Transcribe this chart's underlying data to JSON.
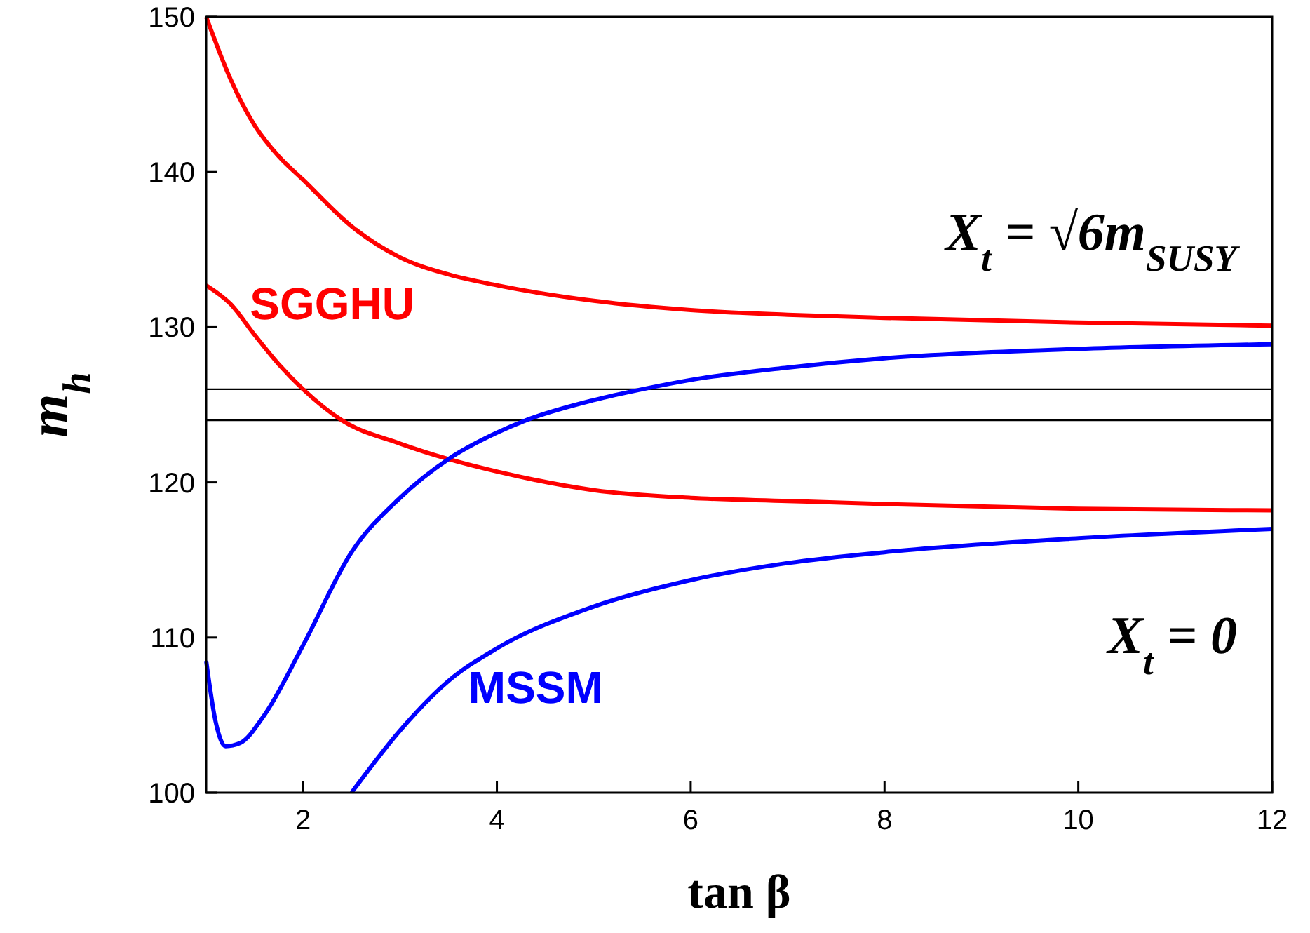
{
  "chart_data": {
    "type": "line",
    "xlabel": "tan β",
    "ylabel": "m$_{h}$",
    "xlim": [
      1,
      12
    ],
    "ylim": [
      100,
      150
    ],
    "xticks": [
      2,
      4,
      6,
      8,
      10,
      12
    ],
    "yticks": [
      100,
      110,
      120,
      130,
      140,
      150
    ],
    "grid": false,
    "marker": "none",
    "line_style": "solid",
    "series": [
      {
        "color": "#ff0000",
        "x": [
          1,
          1.25,
          1.5,
          1.75,
          2,
          2.5,
          3,
          3.5,
          4,
          5,
          6,
          7,
          8,
          10,
          12
        ],
        "values": [
          150,
          146,
          143,
          141,
          139.5,
          136.5,
          134.5,
          133.4,
          132.7,
          131.7,
          131.1,
          130.8,
          130.6,
          130.3,
          130.1
        ]
      },
      {
        "name": "SGGHU",
        "color": "#ff0000",
        "x": [
          1,
          1.25,
          1.5,
          1.75,
          2,
          2.4,
          3,
          3.5,
          4,
          5,
          6,
          7,
          8,
          10,
          12
        ],
        "values": [
          132.7,
          131.5,
          129.5,
          127.6,
          126,
          124,
          122.5,
          121.5,
          120.7,
          119.5,
          119,
          118.8,
          118.6,
          118.3,
          118.2
        ]
      },
      {
        "color": "#0000ff",
        "x": [
          1,
          1.1,
          1.2,
          1.35,
          1.6,
          2,
          2.5,
          3,
          3.5,
          4,
          4.3,
          5,
          5.5,
          6,
          7,
          8,
          10,
          12
        ],
        "values": [
          108.5,
          104.5,
          103,
          103.2,
          105,
          109.5,
          115.5,
          119,
          121.5,
          123.2,
          124,
          125.3,
          126,
          126.6,
          127.4,
          128,
          128.6,
          128.9
        ]
      },
      {
        "name": "MSSM",
        "color": "#0000ff",
        "x": [
          2.5,
          3,
          3.5,
          4,
          5,
          6,
          7,
          8,
          10,
          12
        ],
        "values": [
          100,
          104,
          107.2,
          109.3,
          112,
          113.7,
          114.8,
          115.5,
          116.4,
          117
        ]
      }
    ],
    "ref_lines": [
      {
        "axis": "y",
        "value": 124,
        "color": "#000000"
      },
      {
        "axis": "y",
        "value": 126,
        "color": "#000000"
      }
    ],
    "annotations": [
      "X$_{t}$ = √6m$_{SUSY}$",
      "X$_{t}$ = 0"
    ]
  }
}
